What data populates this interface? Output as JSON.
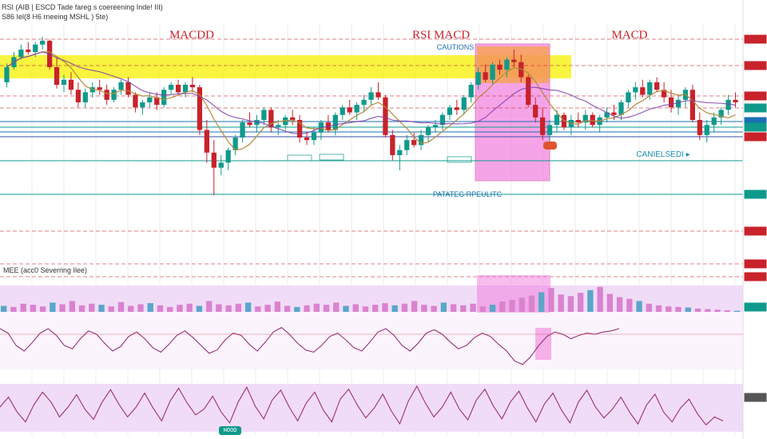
{
  "header": {
    "line1": "RSI (AIB | ESCD Tade fareg s coereening Inde! III)",
    "line2": "S86 Iel(8 H6 rneeing MSHL ) 5te)"
  },
  "titles": {
    "left": "MACDD",
    "center": "RSI MACD",
    "right": "MACD"
  },
  "annotations": {
    "caution": "CAUTIONS",
    "canceled": "CANIELSEDI ▸",
    "pattern": "PATATEG RPEULITC",
    "macd_label": "MEE (acc0 Severring Ilee)",
    "bottom_tag": "HOOD"
  },
  "colors": {
    "bull": "#0f9a8c",
    "bear": "#c8222b",
    "ma_fast": "#b58a3c",
    "ma_slow": "#7e3aa8",
    "macd_hist": "#d983cf",
    "macd_bg": "#f1dcf7",
    "yellow_zone": "#f5f000",
    "magenta_zone": "#ef6bd8",
    "orange_zone": "#f7a23b"
  },
  "chart_data": [
    {
      "type": "candlestick",
      "title": "",
      "ylabel": "",
      "ylim": [
        0,
        100
      ],
      "candles": [
        [
          60,
          75,
          56,
          72
        ],
        [
          72,
          84,
          70,
          80
        ],
        [
          80,
          90,
          78,
          86
        ],
        [
          86,
          92,
          82,
          84
        ],
        [
          84,
          92,
          80,
          90
        ],
        [
          90,
          96,
          86,
          93
        ],
        [
          93,
          94,
          70,
          72
        ],
        [
          72,
          80,
          55,
          58
        ],
        [
          58,
          66,
          52,
          62
        ],
        [
          62,
          68,
          50,
          54
        ],
        [
          54,
          60,
          40,
          44
        ],
        [
          44,
          55,
          40,
          52
        ],
        [
          52,
          60,
          48,
          56
        ],
        [
          56,
          62,
          50,
          54
        ],
        [
          54,
          58,
          42,
          46
        ],
        [
          46,
          56,
          44,
          54
        ],
        [
          54,
          62,
          50,
          60
        ],
        [
          60,
          64,
          48,
          50
        ],
        [
          50,
          52,
          36,
          40
        ],
        [
          40,
          46,
          34,
          44
        ],
        [
          44,
          52,
          40,
          48
        ],
        [
          48,
          52,
          38,
          42
        ],
        [
          42,
          56,
          40,
          54
        ],
        [
          54,
          60,
          50,
          58
        ],
        [
          58,
          62,
          50,
          52
        ],
        [
          52,
          60,
          48,
          58
        ],
        [
          58,
          64,
          52,
          56
        ],
        [
          56,
          58,
          18,
          22
        ],
        [
          22,
          30,
          -4,
          4
        ],
        [
          4,
          14,
          -30,
          -8
        ],
        [
          -8,
          2,
          -14,
          -4
        ],
        [
          -4,
          8,
          -10,
          6
        ],
        [
          6,
          18,
          2,
          16
        ],
        [
          16,
          30,
          12,
          28
        ],
        [
          28,
          36,
          24,
          26
        ],
        [
          26,
          34,
          20,
          30
        ],
        [
          30,
          40,
          26,
          38
        ],
        [
          38,
          40,
          20,
          24
        ],
        [
          24,
          30,
          18,
          26
        ],
        [
          26,
          34,
          22,
          32
        ],
        [
          32,
          38,
          26,
          30
        ],
        [
          30,
          34,
          12,
          16
        ],
        [
          16,
          20,
          10,
          14
        ],
        [
          14,
          24,
          10,
          20
        ],
        [
          20,
          30,
          14,
          28
        ],
        [
          28,
          34,
          20,
          22
        ],
        [
          22,
          36,
          18,
          34
        ],
        [
          34,
          42,
          30,
          40
        ],
        [
          40,
          46,
          34,
          36
        ],
        [
          36,
          44,
          30,
          42
        ],
        [
          42,
          50,
          36,
          46
        ],
        [
          46,
          56,
          42,
          52
        ],
        [
          52,
          60,
          46,
          48
        ],
        [
          48,
          50,
          16,
          18
        ],
        [
          18,
          22,
          -2,
          2
        ],
        [
          2,
          10,
          -10,
          6
        ],
        [
          6,
          18,
          2,
          14
        ],
        [
          14,
          20,
          8,
          10
        ],
        [
          10,
          22,
          6,
          18
        ],
        [
          18,
          26,
          12,
          24
        ],
        [
          24,
          30,
          20,
          26
        ],
        [
          26,
          36,
          22,
          34
        ],
        [
          34,
          42,
          30,
          40
        ],
        [
          40,
          46,
          34,
          38
        ],
        [
          38,
          50,
          34,
          48
        ],
        [
          48,
          60,
          44,
          58
        ],
        [
          58,
          72,
          54,
          68
        ],
        [
          68,
          74,
          60,
          62
        ],
        [
          62,
          76,
          58,
          74
        ],
        [
          74,
          78,
          66,
          70
        ],
        [
          70,
          80,
          64,
          78
        ],
        [
          78,
          86,
          72,
          76
        ],
        [
          76,
          82,
          60,
          64
        ],
        [
          64,
          66,
          40,
          42
        ],
        [
          42,
          48,
          28,
          32
        ],
        [
          32,
          40,
          14,
          18
        ],
        [
          18,
          30,
          12,
          26
        ],
        [
          26,
          38,
          20,
          34
        ],
        [
          34,
          36,
          22,
          24
        ],
        [
          24,
          34,
          18,
          30
        ],
        [
          30,
          36,
          24,
          28
        ],
        [
          28,
          38,
          22,
          34
        ],
        [
          34,
          36,
          24,
          26
        ],
        [
          26,
          34,
          20,
          32
        ],
        [
          32,
          40,
          28,
          36
        ],
        [
          36,
          42,
          30,
          34
        ],
        [
          34,
          46,
          30,
          44
        ],
        [
          44,
          54,
          40,
          52
        ],
        [
          52,
          60,
          46,
          56
        ],
        [
          56,
          62,
          48,
          50
        ],
        [
          50,
          62,
          46,
          60
        ],
        [
          60,
          64,
          52,
          54
        ],
        [
          54,
          60,
          44,
          48
        ],
        [
          48,
          54,
          36,
          40
        ],
        [
          40,
          50,
          34,
          46
        ],
        [
          46,
          56,
          40,
          54
        ],
        [
          54,
          58,
          28,
          30
        ],
        [
          30,
          36,
          14,
          18
        ],
        [
          18,
          30,
          12,
          26
        ],
        [
          26,
          36,
          20,
          32
        ],
        [
          32,
          40,
          26,
          38
        ],
        [
          38,
          50,
          34,
          46
        ],
        [
          46,
          52,
          40,
          44
        ]
      ]
    },
    {
      "type": "bar",
      "title": "",
      "ylabel": "",
      "ylim": [
        0,
        100
      ],
      "values": [
        22,
        18,
        30,
        26,
        20,
        34,
        28,
        40,
        24,
        30,
        26,
        20,
        36,
        22,
        28,
        32,
        24,
        18,
        26,
        30,
        22,
        40,
        28,
        24,
        30,
        34,
        20,
        26,
        38,
        22,
        18,
        24,
        30,
        26,
        34,
        22,
        28,
        20,
        26,
        32,
        24,
        30,
        40,
        26,
        22,
        34,
        28,
        24,
        30,
        20,
        26,
        38,
        44,
        52,
        60,
        72,
        88,
        64,
        58,
        70,
        80,
        92,
        66,
        54,
        48,
        40,
        30,
        24,
        20,
        18,
        16,
        12,
        10,
        8,
        6,
        4
      ]
    },
    {
      "type": "line",
      "title": "",
      "ylabel": "",
      "ylim": [
        0,
        100
      ],
      "values": [
        70,
        62,
        40,
        30,
        45,
        62,
        70,
        58,
        40,
        34,
        52,
        66,
        60,
        44,
        30,
        38,
        56,
        64,
        52,
        36,
        28,
        42,
        58,
        66,
        54,
        40,
        26,
        32,
        50,
        62,
        58,
        42,
        30,
        46,
        64,
        72,
        60,
        44,
        32,
        28,
        40,
        56,
        62,
        50,
        36,
        30,
        46,
        64,
        70,
        58,
        40,
        30,
        44,
        62,
        68,
        60,
        46,
        34,
        40,
        54,
        62,
        56,
        42,
        30,
        12,
        6,
        20,
        40,
        56,
        64,
        60,
        52,
        58,
        62,
        60,
        64,
        66,
        70
      ]
    },
    {
      "type": "line",
      "title": "",
      "ylabel": "",
      "ylim": [
        0,
        100
      ],
      "values": [
        50,
        70,
        40,
        20,
        55,
        80,
        60,
        30,
        50,
        75,
        45,
        25,
        60,
        85,
        55,
        30,
        50,
        78,
        48,
        22,
        62,
        88,
        58,
        34,
        46,
        72,
        40,
        18,
        60,
        90,
        52,
        26,
        64,
        84,
        50,
        22,
        58,
        80,
        44,
        20,
        66,
        86,
        54,
        28,
        48,
        76,
        42,
        16,
        62,
        92,
        58,
        30,
        50,
        80,
        46,
        24,
        64,
        86,
        52,
        26,
        60,
        82,
        48,
        20,
        56,
        78,
        44,
        18,
        60,
        84,
        50,
        28,
        46,
        70,
        40,
        16,
        54,
        76,
        40,
        20,
        48,
        66,
        36,
        14,
        30,
        22
      ]
    }
  ]
}
